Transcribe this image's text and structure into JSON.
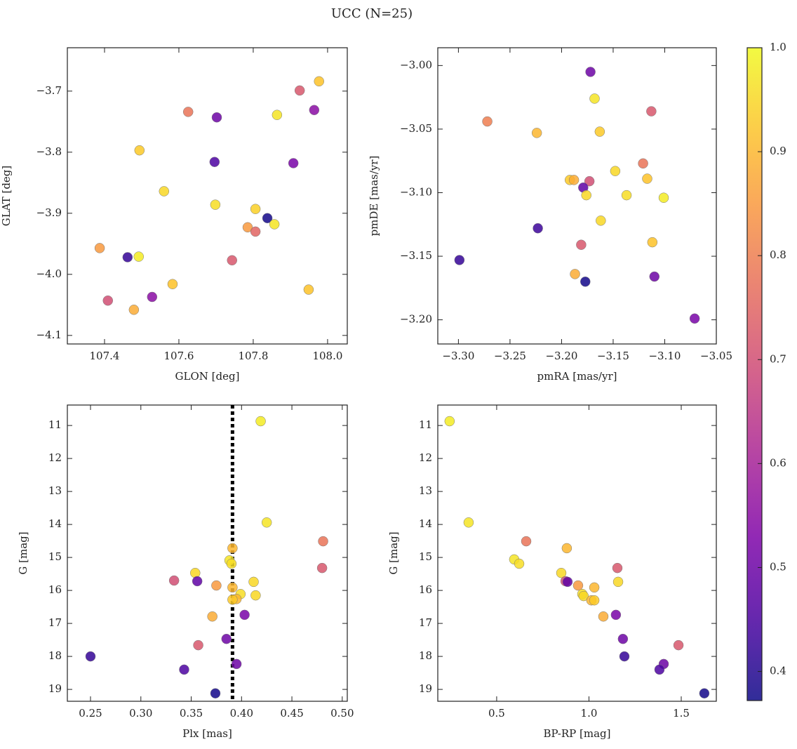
{
  "title": "UCC (N=25)",
  "chart_data": [
    {
      "type": "scatter",
      "xlabel": "GLON [deg]",
      "ylabel": "GLAT [deg]",
      "x": [
        107.925,
        107.977,
        107.964,
        107.625,
        107.702,
        107.864,
        107.494,
        107.696,
        107.908,
        107.56,
        107.698,
        107.806,
        107.838,
        107.857,
        107.785,
        107.806,
        107.387,
        107.492,
        107.743,
        107.583,
        107.949,
        107.528,
        107.409,
        107.479,
        107.462
      ],
      "y": [
        -3.699,
        -3.684,
        -3.731,
        -3.734,
        -3.743,
        -3.739,
        -3.797,
        -3.816,
        -3.818,
        -3.864,
        -3.886,
        -3.893,
        -3.908,
        -3.918,
        -3.923,
        -3.93,
        -3.957,
        -3.971,
        -3.977,
        -4.016,
        -4.025,
        -4.037,
        -4.043,
        -4.058,
        -3.972
      ],
      "c": [
        0.72,
        0.92,
        0.55,
        0.78,
        0.5,
        0.97,
        0.93,
        0.45,
        0.52,
        0.95,
        0.96,
        0.94,
        0.38,
        0.97,
        0.85,
        0.75,
        0.85,
        0.98,
        0.72,
        0.92,
        0.92,
        0.55,
        0.7,
        0.88,
        0.42
      ],
      "xlim": [
        107.3,
        108.053
      ],
      "ylim": [
        -4.114,
        -3.629
      ],
      "xticks": [
        107.4,
        107.6,
        107.8,
        {
          "value": 108,
          "label": "108.0"
        }
      ],
      "yticks": [
        {
          "value": -3.7,
          "label": "−3.7"
        },
        {
          "value": -3.8,
          "label": "−3.8"
        },
        {
          "value": -3.9,
          "label": "−3.9"
        },
        {
          "value": -4.0,
          "label": "−4.0"
        },
        {
          "value": -4.1,
          "label": "−4.1"
        }
      ]
    },
    {
      "type": "scatter",
      "xlabel": "pmRA [mas/yr]",
      "ylabel": "pmDE [mas/yr]",
      "x": [
        -3.172,
        -3.168,
        -3.113,
        -3.272,
        -3.224,
        -3.163,
        -3.121,
        -3.148,
        -3.192,
        -3.188,
        -3.173,
        -3.179,
        -3.117,
        -3.176,
        -3.137,
        -3.101,
        -3.162,
        -3.223,
        -3.112,
        -3.181,
        -3.299,
        -3.187,
        -3.11,
        -3.177,
        -3.071
      ],
      "y": [
        -3.005,
        -3.026,
        -3.036,
        -3.044,
        -3.053,
        -3.052,
        -3.077,
        -3.083,
        -3.09,
        -3.09,
        -3.091,
        -3.096,
        -3.089,
        -3.102,
        -3.102,
        -3.104,
        -3.122,
        -3.128,
        -3.139,
        -3.141,
        -3.153,
        -3.164,
        -3.166,
        -3.17,
        -3.199
      ],
      "c": [
        0.5,
        0.97,
        0.72,
        0.8,
        0.9,
        0.93,
        0.78,
        0.95,
        0.93,
        0.88,
        0.7,
        0.48,
        0.92,
        0.95,
        0.96,
        0.98,
        0.95,
        0.43,
        0.92,
        0.72,
        0.42,
        0.88,
        0.5,
        0.38,
        0.52
      ],
      "xlim": [
        -3.32,
        -3.05
      ],
      "ylim": [
        -3.219,
        -2.986
      ],
      "xticks": [
        {
          "value": -3.3,
          "label": "−3.30"
        },
        {
          "value": -3.25,
          "label": "−3.25"
        },
        {
          "value": -3.2,
          "label": "−3.20"
        },
        {
          "value": -3.15,
          "label": "−3.15"
        },
        {
          "value": -3.1,
          "label": "−3.10"
        },
        {
          "value": -3.05,
          "label": "−3.05"
        }
      ],
      "yticks": [
        {
          "value": -3.0,
          "label": "−3.00"
        },
        {
          "value": -3.05,
          "label": "−3.05"
        },
        {
          "value": -3.1,
          "label": "−3.10"
        },
        {
          "value": -3.15,
          "label": "−3.15"
        },
        {
          "value": -3.2,
          "label": "−3.20"
        }
      ]
    },
    {
      "type": "scatter",
      "xlabel": "Plx [mas]",
      "ylabel": "G [mag]",
      "vline": 0.391,
      "x": [
        0.419,
        0.425,
        0.481,
        0.391,
        0.388,
        0.39,
        0.354,
        0.48,
        0.333,
        0.356,
        0.375,
        0.391,
        0.412,
        0.399,
        0.414,
        0.395,
        0.391,
        0.371,
        0.403,
        0.385,
        0.357,
        0.25,
        0.395,
        0.343,
        0.374
      ],
      "y": [
        10.87,
        13.94,
        14.51,
        14.72,
        15.09,
        15.19,
        15.47,
        15.32,
        15.7,
        15.72,
        15.85,
        15.91,
        15.74,
        16.11,
        16.15,
        16.26,
        16.28,
        16.79,
        16.74,
        17.47,
        17.66,
        18.0,
        18.23,
        18.4,
        19.12
      ],
      "c": [
        0.98,
        0.97,
        0.78,
        0.9,
        0.97,
        0.96,
        0.95,
        0.72,
        0.7,
        0.48,
        0.85,
        0.9,
        0.95,
        0.96,
        0.95,
        0.9,
        0.93,
        0.88,
        0.52,
        0.5,
        0.72,
        0.42,
        0.5,
        0.45,
        0.38
      ],
      "xlim": [
        0.227,
        0.505
      ],
      "ylim": [
        19.36,
        10.38
      ],
      "xticks": [
        0.25,
        {
          "value": 0.3,
          "label": "0.30"
        },
        0.35,
        {
          "value": 0.4,
          "label": "0.40"
        },
        0.45,
        {
          "value": 0.5,
          "label": "0.50"
        }
      ],
      "yticks": [
        11,
        12,
        13,
        14,
        15,
        16,
        17,
        18,
        19
      ]
    },
    {
      "type": "scatter",
      "xlabel": "BP-RP [mag]",
      "ylabel": "G [mag]",
      "x": [
        0.245,
        0.348,
        0.66,
        0.88,
        0.595,
        0.622,
        0.85,
        1.154,
        0.873,
        0.884,
        0.941,
        1.029,
        1.158,
        0.964,
        0.971,
        1.013,
        1.029,
        1.078,
        1.146,
        1.184,
        1.485,
        1.192,
        1.405,
        1.382,
        1.625
      ],
      "y": [
        10.87,
        13.94,
        14.51,
        14.72,
        15.06,
        15.19,
        15.47,
        15.32,
        15.72,
        15.74,
        15.85,
        15.91,
        15.74,
        16.11,
        16.17,
        16.3,
        16.3,
        16.79,
        16.74,
        17.47,
        17.66,
        18.0,
        18.23,
        18.4,
        19.12
      ],
      "c": [
        0.98,
        0.97,
        0.78,
        0.9,
        0.97,
        0.96,
        0.95,
        0.72,
        0.7,
        0.48,
        0.85,
        0.9,
        0.95,
        0.96,
        0.95,
        0.9,
        0.93,
        0.88,
        0.52,
        0.5,
        0.72,
        0.42,
        0.5,
        0.45,
        0.38
      ],
      "xlim": [
        0.181,
        1.69
      ],
      "ylim": [
        19.36,
        10.38
      ],
      "xticks": [
        0.5,
        {
          "value": 1.0,
          "label": "1.0"
        },
        1.5
      ],
      "yticks": [
        11,
        12,
        13,
        14,
        15,
        16,
        17,
        18,
        19
      ]
    },
    {
      "type": "colorbar",
      "colormap": "plasma",
      "clim": [
        0.372,
        1.0
      ],
      "ticks": [
        0.4,
        0.5,
        0.6,
        0.7,
        0.8,
        0.9,
        {
          "value": 1.0,
          "label": "1.0"
        }
      ]
    }
  ]
}
